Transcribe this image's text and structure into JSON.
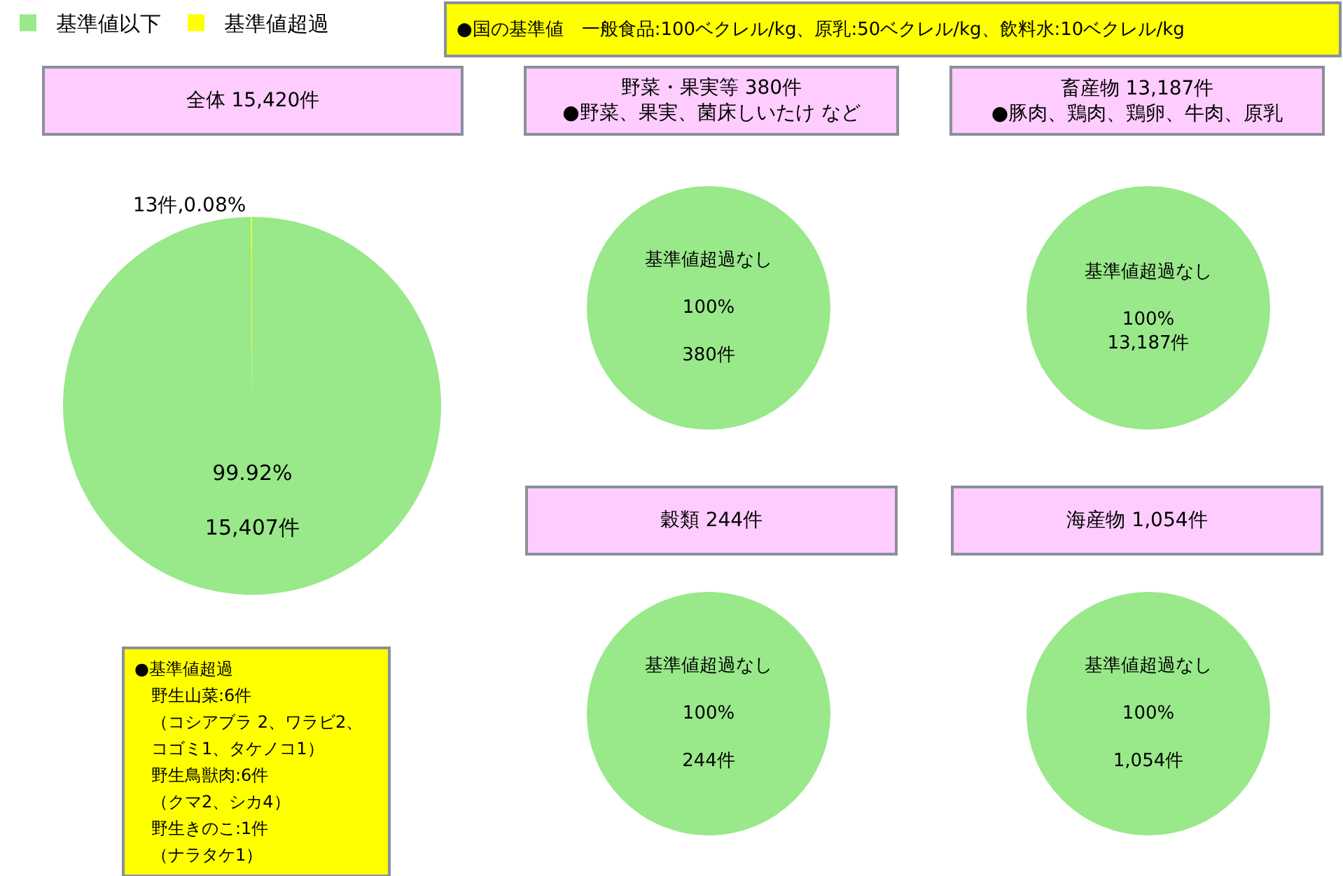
{
  "chart_data": [
    {
      "type": "pie",
      "title": "全体 15,420件",
      "categories": [
        "基準値以下",
        "基準値超過"
      ],
      "values": [
        99.92,
        0.08
      ],
      "colors": [
        "#99e88a",
        "#ffff00"
      ],
      "value_labels": [
        "99.92%\n\n15,407件",
        "13件,0.08%"
      ],
      "legend": "top left",
      "annotations": [
        "●国の基準値　一般食品:100ベクレル/kg、原乳:50ベクレル/kg、飲料水:10ベクレル/kg",
        "●基準値超過",
        "野生山菜:6件",
        "（コシアブラ 2、ワラビ2、",
        "コゴミ1、タケノコ1）",
        "野生鳥獣肉:6件",
        "（クマ2、シカ4）",
        "野生きのこ:1件",
        "（ナラタケ1）"
      ]
    },
    {
      "type": "pie",
      "title": "野菜・果実等 380件",
      "subtitle": "●野菜、果実、菌床しいたけ など",
      "categories": [
        null,
        null
      ],
      "values": [
        100,
        0
      ],
      "colors": [
        "#99e88a",
        "#ffff00"
      ],
      "value_labels": [
        "基準値超過なし\n\n100%\n\n380件",
        null
      ]
    },
    {
      "type": "pie",
      "title": "畜産物 13,187件",
      "subtitle": "●豚肉、鶏肉、鶏卵、牛肉、原乳",
      "categories": [
        null,
        null
      ],
      "values": [
        100,
        0
      ],
      "colors": [
        "#99e88a",
        "#ffff00"
      ],
      "value_labels": [
        "基準値超過なし\n\n100%\n13,187件",
        null
      ]
    },
    {
      "type": "pie",
      "title": "穀類 244件",
      "categories": [
        null,
        null
      ],
      "values": [
        100,
        0
      ],
      "colors": [
        "#99e88a",
        "#ffff00"
      ],
      "value_labels": [
        "基準値超過なし\n\n100%\n\n244件",
        null
      ]
    },
    {
      "type": "pie",
      "title": "海産物 1,054件",
      "categories": [
        null,
        null
      ],
      "values": [
        100,
        0
      ],
      "colors": [
        "#99e88a",
        "#ffff00"
      ],
      "value_labels": [
        "基準値超過なし\n\n100%\n\n1,054件",
        null
      ]
    }
  ]
}
